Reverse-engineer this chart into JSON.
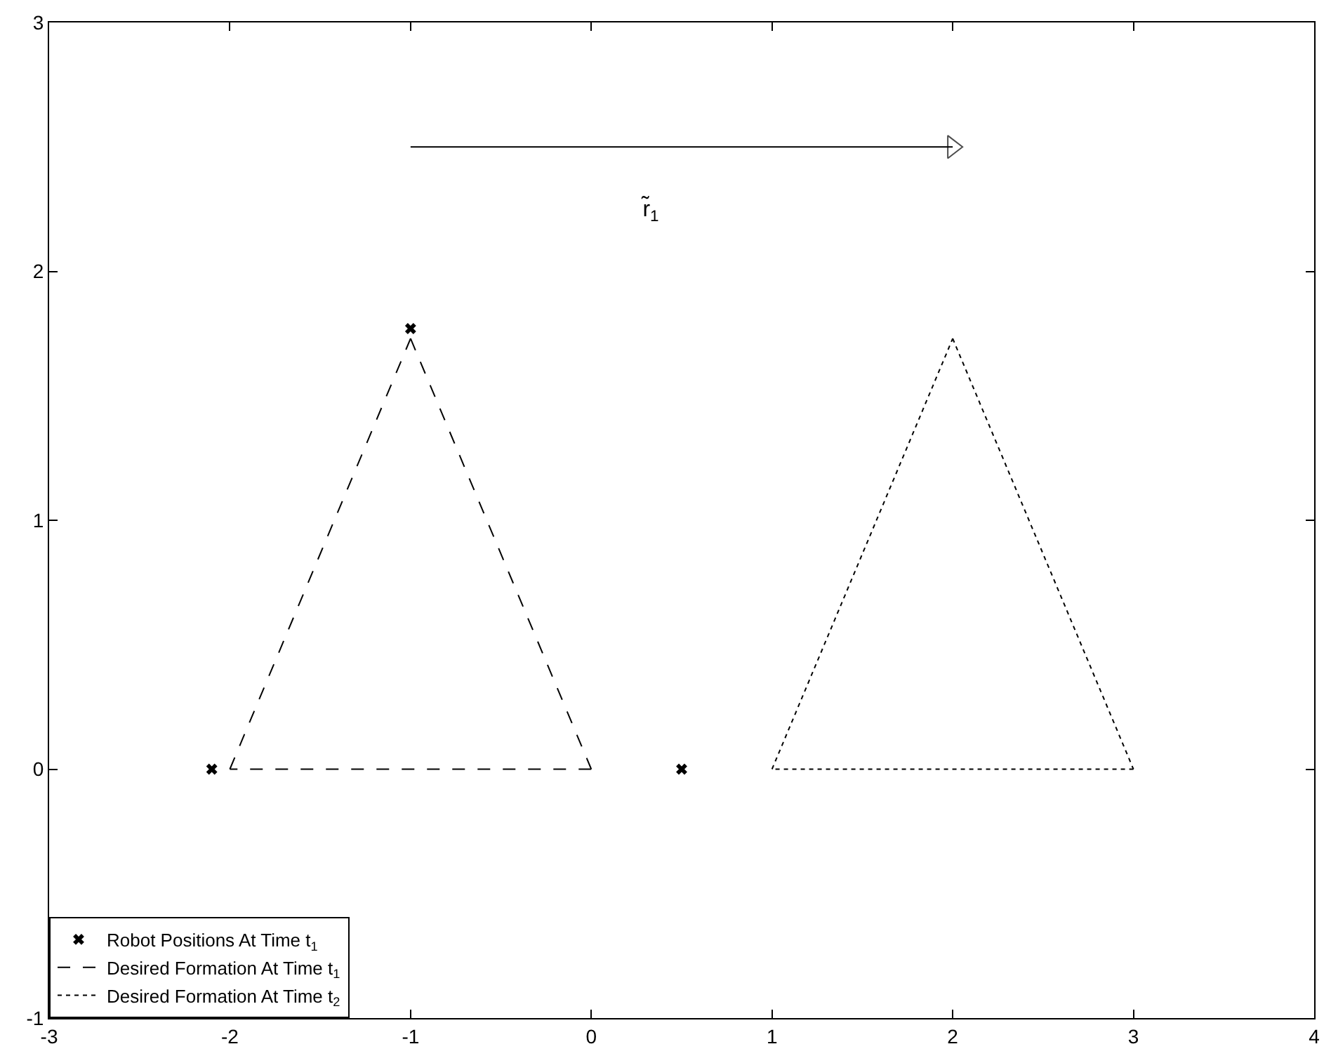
{
  "chart_data": {
    "type": "scatter",
    "xlim": [
      -3,
      4
    ],
    "ylim": [
      -1,
      3
    ],
    "xticks": [
      -3,
      -2,
      -1,
      0,
      1,
      2,
      3,
      4
    ],
    "yticks": [
      -1,
      0,
      1,
      2,
      3
    ],
    "legend": "bottom left",
    "series": [
      {
        "name": "Robot Positions At Time t$_{1}$",
        "marker": "cross",
        "color": "#000000",
        "x": [
          -2.1,
          -1,
          0.5
        ],
        "values": [
          0,
          1.77,
          0
        ]
      },
      {
        "name": "Desired Formation At Time t$_{1}$",
        "type": "line",
        "line_style": "dashed",
        "color": "#000000",
        "x": [
          -2,
          -1,
          null,
          -1,
          0,
          null,
          0,
          -2
        ],
        "values": [
          0,
          1.73,
          null,
          1.73,
          0,
          null,
          0,
          0
        ]
      },
      {
        "name": "Desired Formation At Time t$_{2}$",
        "type": "line",
        "line_style": "dotted",
        "color": "#000000",
        "x": [
          1,
          2,
          null,
          2,
          3,
          null,
          3,
          1
        ],
        "values": [
          0,
          1.73,
          null,
          1.73,
          0,
          null,
          0,
          0
        ]
      },
      {
        "type": "line",
        "line_style": "solid",
        "marker": "triangle",
        "color": "#000000",
        "x": [
          -1,
          2
        ],
        "values": [
          2.5,
          2.5
        ]
      }
    ],
    "annotations": [
      "r̃$_{1}$"
    ]
  }
}
